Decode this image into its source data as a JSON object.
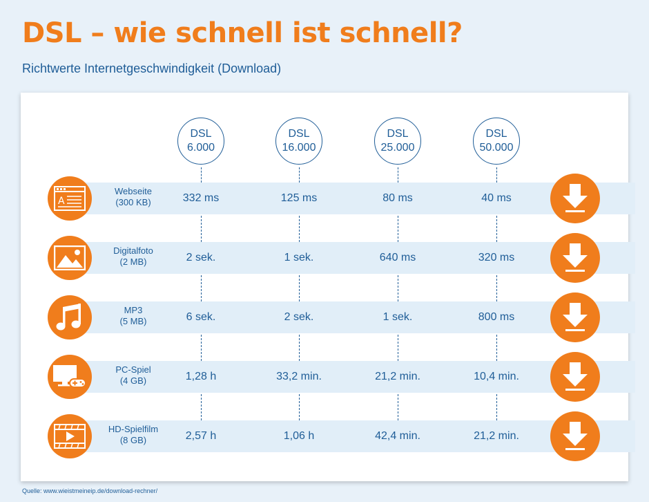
{
  "header": {
    "title": "DSL – wie schnell ist schnell?",
    "subtitle": "Richtwerte Internetgeschwindigkeit (Download)"
  },
  "columns": [
    {
      "line1": "DSL",
      "line2": "6.000"
    },
    {
      "line1": "DSL",
      "line2": "16.000"
    },
    {
      "line1": "DSL",
      "line2": "25.000"
    },
    {
      "line1": "DSL",
      "line2": "50.000"
    }
  ],
  "rows": [
    {
      "icon": "webpage-icon",
      "name": "Webseite",
      "size": "(300 KB)",
      "values": [
        "332 ms",
        "125 ms",
        "80 ms",
        "40 ms"
      ]
    },
    {
      "icon": "image-icon",
      "name": "Digitalfoto",
      "size": "(2 MB)",
      "values": [
        "2 sek.",
        "1 sek.",
        "640 ms",
        "320 ms"
      ]
    },
    {
      "icon": "music-note-icon",
      "name": "MP3",
      "size": "(5 MB)",
      "values": [
        "6 sek.",
        "2 sek.",
        "1 sek.",
        "800 ms"
      ]
    },
    {
      "icon": "game-controller-icon",
      "name": "PC-Spiel",
      "size": "(4 GB)",
      "values": [
        "1,28 h",
        "33,2 min.",
        "21,2 min.",
        "10,4 min."
      ]
    },
    {
      "icon": "film-icon",
      "name": "HD-Spielfilm",
      "size": "(8 GB)",
      "values": [
        "2,57 h",
        "1,06 h",
        "42,4 min.",
        "21,2 min."
      ]
    }
  ],
  "source": "Quelle: www.wieistmeineip.de/download-rechner/",
  "colors": {
    "accent": "#f07d1c",
    "text": "#1f5d97",
    "band": "#e1eef8",
    "background": "#e8f1f9"
  }
}
